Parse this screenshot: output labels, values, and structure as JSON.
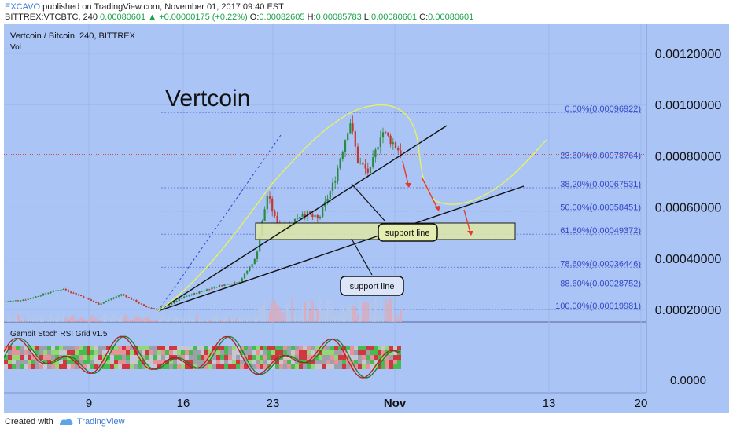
{
  "header": {
    "author": "EXCAVO",
    "published_text": "published on TradingView.com, November 01, 2017 09:40 EST",
    "symbol": "BITTREX:VTCBTC, 240",
    "last": "0.00080601",
    "change": "+0.00000175 (+0.22%)",
    "o_label": "O:",
    "o_val": "0.00082605",
    "h_label": "H:",
    "h_val": "0.00085783",
    "l_label": "L:",
    "l_val": "0.00080601",
    "c_label": "C:",
    "c_val": "0.00080601"
  },
  "pane": {
    "title": "Vertcoin / Bitcoin, 240, BITTREX",
    "vol": "Vol",
    "big_title": "Vertcoin",
    "indicator": "Gambit Stoch RSI Grid v1.5"
  },
  "price_axis": [
    "0.00120000",
    "0.00100000",
    "0.00080000",
    "0.00060000",
    "0.00040000",
    "0.00020000"
  ],
  "osc_axis": "0.0000",
  "time_axis": [
    "9",
    "16",
    "23",
    "Nov",
    "13",
    "20"
  ],
  "fib_levels": [
    {
      "label": "0.00%(0.00096922)",
      "value": 0.00096922
    },
    {
      "label": "23.60%(0.00078764)",
      "value": 0.00078764
    },
    {
      "label": "38.20%(0.00067531)",
      "value": 0.00067531
    },
    {
      "label": "50.00%(0.00058451)",
      "value": 0.00058451
    },
    {
      "label": "61.80%(0.00049372)",
      "value": 0.00049372
    },
    {
      "label": "78.60%(0.00036446)",
      "value": 0.00036446
    },
    {
      "label": "88.60%(0.00028752)",
      "value": 0.00028752
    },
    {
      "label": "100.00%(0.00019981)",
      "value": 0.00019981
    }
  ],
  "annotations": [
    "support line",
    "support line"
  ],
  "footer": {
    "created": "Created with",
    "brand": "TradingView"
  },
  "colors": {
    "background": "#a9c4f5",
    "up": "#2b8a3e",
    "down": "#c0392b",
    "fib_line": "#6f7fdc",
    "fib_text": "#3548c8",
    "brand": "#3d7ad6"
  },
  "chart_data": {
    "type": "candlestick",
    "title": "Vertcoin / Bitcoin, 240, BITTREX",
    "ylim": [
      0.00013,
      0.00133
    ],
    "x_range": [
      "Oct 1",
      "Nov 20"
    ],
    "current_price": 0.00080601,
    "series": [
      {
        "name": "close",
        "x": [
          "Oct 5",
          "Oct 8",
          "Oct 10",
          "Oct 14",
          "Oct 16",
          "Oct 19",
          "Oct 21",
          "Oct 22",
          "Oct 24",
          "Oct 26",
          "Oct 28",
          "Oct 29",
          "Oct 30",
          "Nov 1"
        ],
        "values": [
          0.00023,
          0.00027,
          0.00022,
          0.0002,
          0.00026,
          0.00029,
          0.00045,
          0.00065,
          0.00055,
          0.00058,
          0.00075,
          0.00096,
          0.00088,
          0.00080601
        ]
      }
    ]
  }
}
